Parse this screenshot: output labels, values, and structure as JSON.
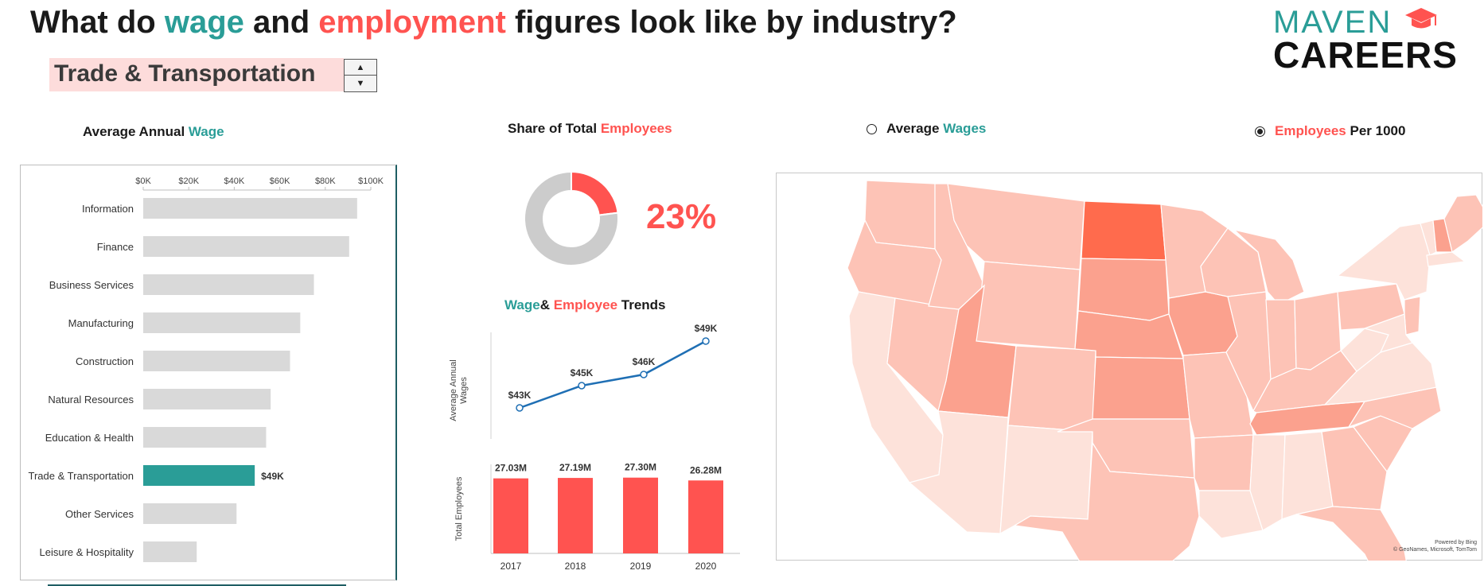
{
  "header": {
    "title_parts": [
      {
        "text": "What do ",
        "color": "#1a1a1a"
      },
      {
        "text": "wage",
        "color": "#2a9d97"
      },
      {
        "text": " and ",
        "color": "#1a1a1a"
      },
      {
        "text": "employment",
        "color": "#ff5350"
      },
      {
        "text": " figures look like by industry?",
        "color": "#1a1a1a"
      }
    ]
  },
  "logo": {
    "line1": "MAVEN",
    "line2": "CAREERS",
    "icon": "graduation-cap-icon"
  },
  "selector": {
    "value": "Trade & Transportation",
    "up_icon": "triangle-up-icon",
    "down_icon": "triangle-down-icon"
  },
  "colors": {
    "teal": "#2a9d97",
    "red": "#ff5350",
    "grey_bar": "#d9d9d9",
    "line_blue": "#1f6fb4",
    "donut_grey": "#cccccc"
  },
  "wage_panel": {
    "title_prefix": "Average Annual ",
    "title_accent": "Wage"
  },
  "share_panel": {
    "title_prefix": "Share of Total ",
    "title_accent": "Employees",
    "value_label": "23%"
  },
  "trend_panel": {
    "title_a": "Wage",
    "title_amp": "& ",
    "title_b": "Employee",
    "title_c": " Trends"
  },
  "map_panel": {
    "option_wages": {
      "accent": "Average ",
      "label": "Wages",
      "checked": false
    },
    "option_employees": {
      "accent": "Employees",
      "label": " Per 1000",
      "checked": true
    },
    "credit_line1": "Powered by Bing",
    "credit_line2": "© GeoNames, Microsoft, TomTom"
  },
  "chart_data": [
    {
      "type": "bar",
      "orientation": "horizontal",
      "title": "Average Annual Wage",
      "categories": [
        "Information",
        "Finance",
        "Business Services",
        "Manufacturing",
        "Construction",
        "Natural Resources",
        "Education & Health",
        "Trade & Transportation",
        "Other Services",
        "Leisure & Hospitality"
      ],
      "values": [
        94000,
        90500,
        75000,
        69000,
        64500,
        56000,
        54000,
        49000,
        41000,
        23500
      ],
      "highlight": "Trade & Transportation",
      "highlight_label": "$49K",
      "xlim": [
        0,
        100000
      ],
      "xticks": [
        0,
        20000,
        40000,
        60000,
        80000,
        100000
      ],
      "xtick_labels": [
        "$0K",
        "$20K",
        "$40K",
        "$60K",
        "$80K",
        "$100K"
      ]
    },
    {
      "type": "pie",
      "title": "Share of Total Employees",
      "values": [
        23,
        77
      ],
      "colors": [
        "#ff5350",
        "#cccccc"
      ]
    },
    {
      "type": "line",
      "title": "Wage& Employee Trends",
      "ylabel": "Average Annual Wages",
      "x": [
        2017,
        2018,
        2019,
        2020
      ],
      "values": [
        43,
        45,
        46,
        49
      ],
      "labels": [
        "$43K",
        "$45K",
        "$46K",
        "$49K"
      ]
    },
    {
      "type": "bar",
      "ylabel": "Total Employees",
      "categories": [
        "2017",
        "2018",
        "2019",
        "2020"
      ],
      "values": [
        27.03,
        27.19,
        27.3,
        26.28
      ],
      "labels": [
        "27.03M",
        "27.19M",
        "27.30M",
        "26.28M"
      ]
    },
    {
      "type": "heatmap",
      "subtype": "choropleth",
      "measure": "Employees Per 1000",
      "shading": {
        "darkest": [
          "ND"
        ],
        "dark": [
          "SD",
          "NE",
          "IA",
          "TN",
          "UT",
          "NH",
          "KS"
        ],
        "medium": [
          "WA",
          "OR",
          "ID",
          "MT",
          "WY",
          "CO",
          "MN",
          "WI",
          "IL",
          "IN",
          "OH",
          "KY",
          "MO",
          "AR",
          "TX",
          "GA",
          "PA",
          "NJ",
          "NV",
          "MI",
          "NC",
          "SC",
          "FL",
          "OK",
          "ME"
        ],
        "light": [
          "CA",
          "AZ",
          "NM",
          "NY",
          "WV",
          "VA",
          "LA",
          "MS",
          "AL",
          "VT",
          "MA"
        ]
      }
    }
  ]
}
